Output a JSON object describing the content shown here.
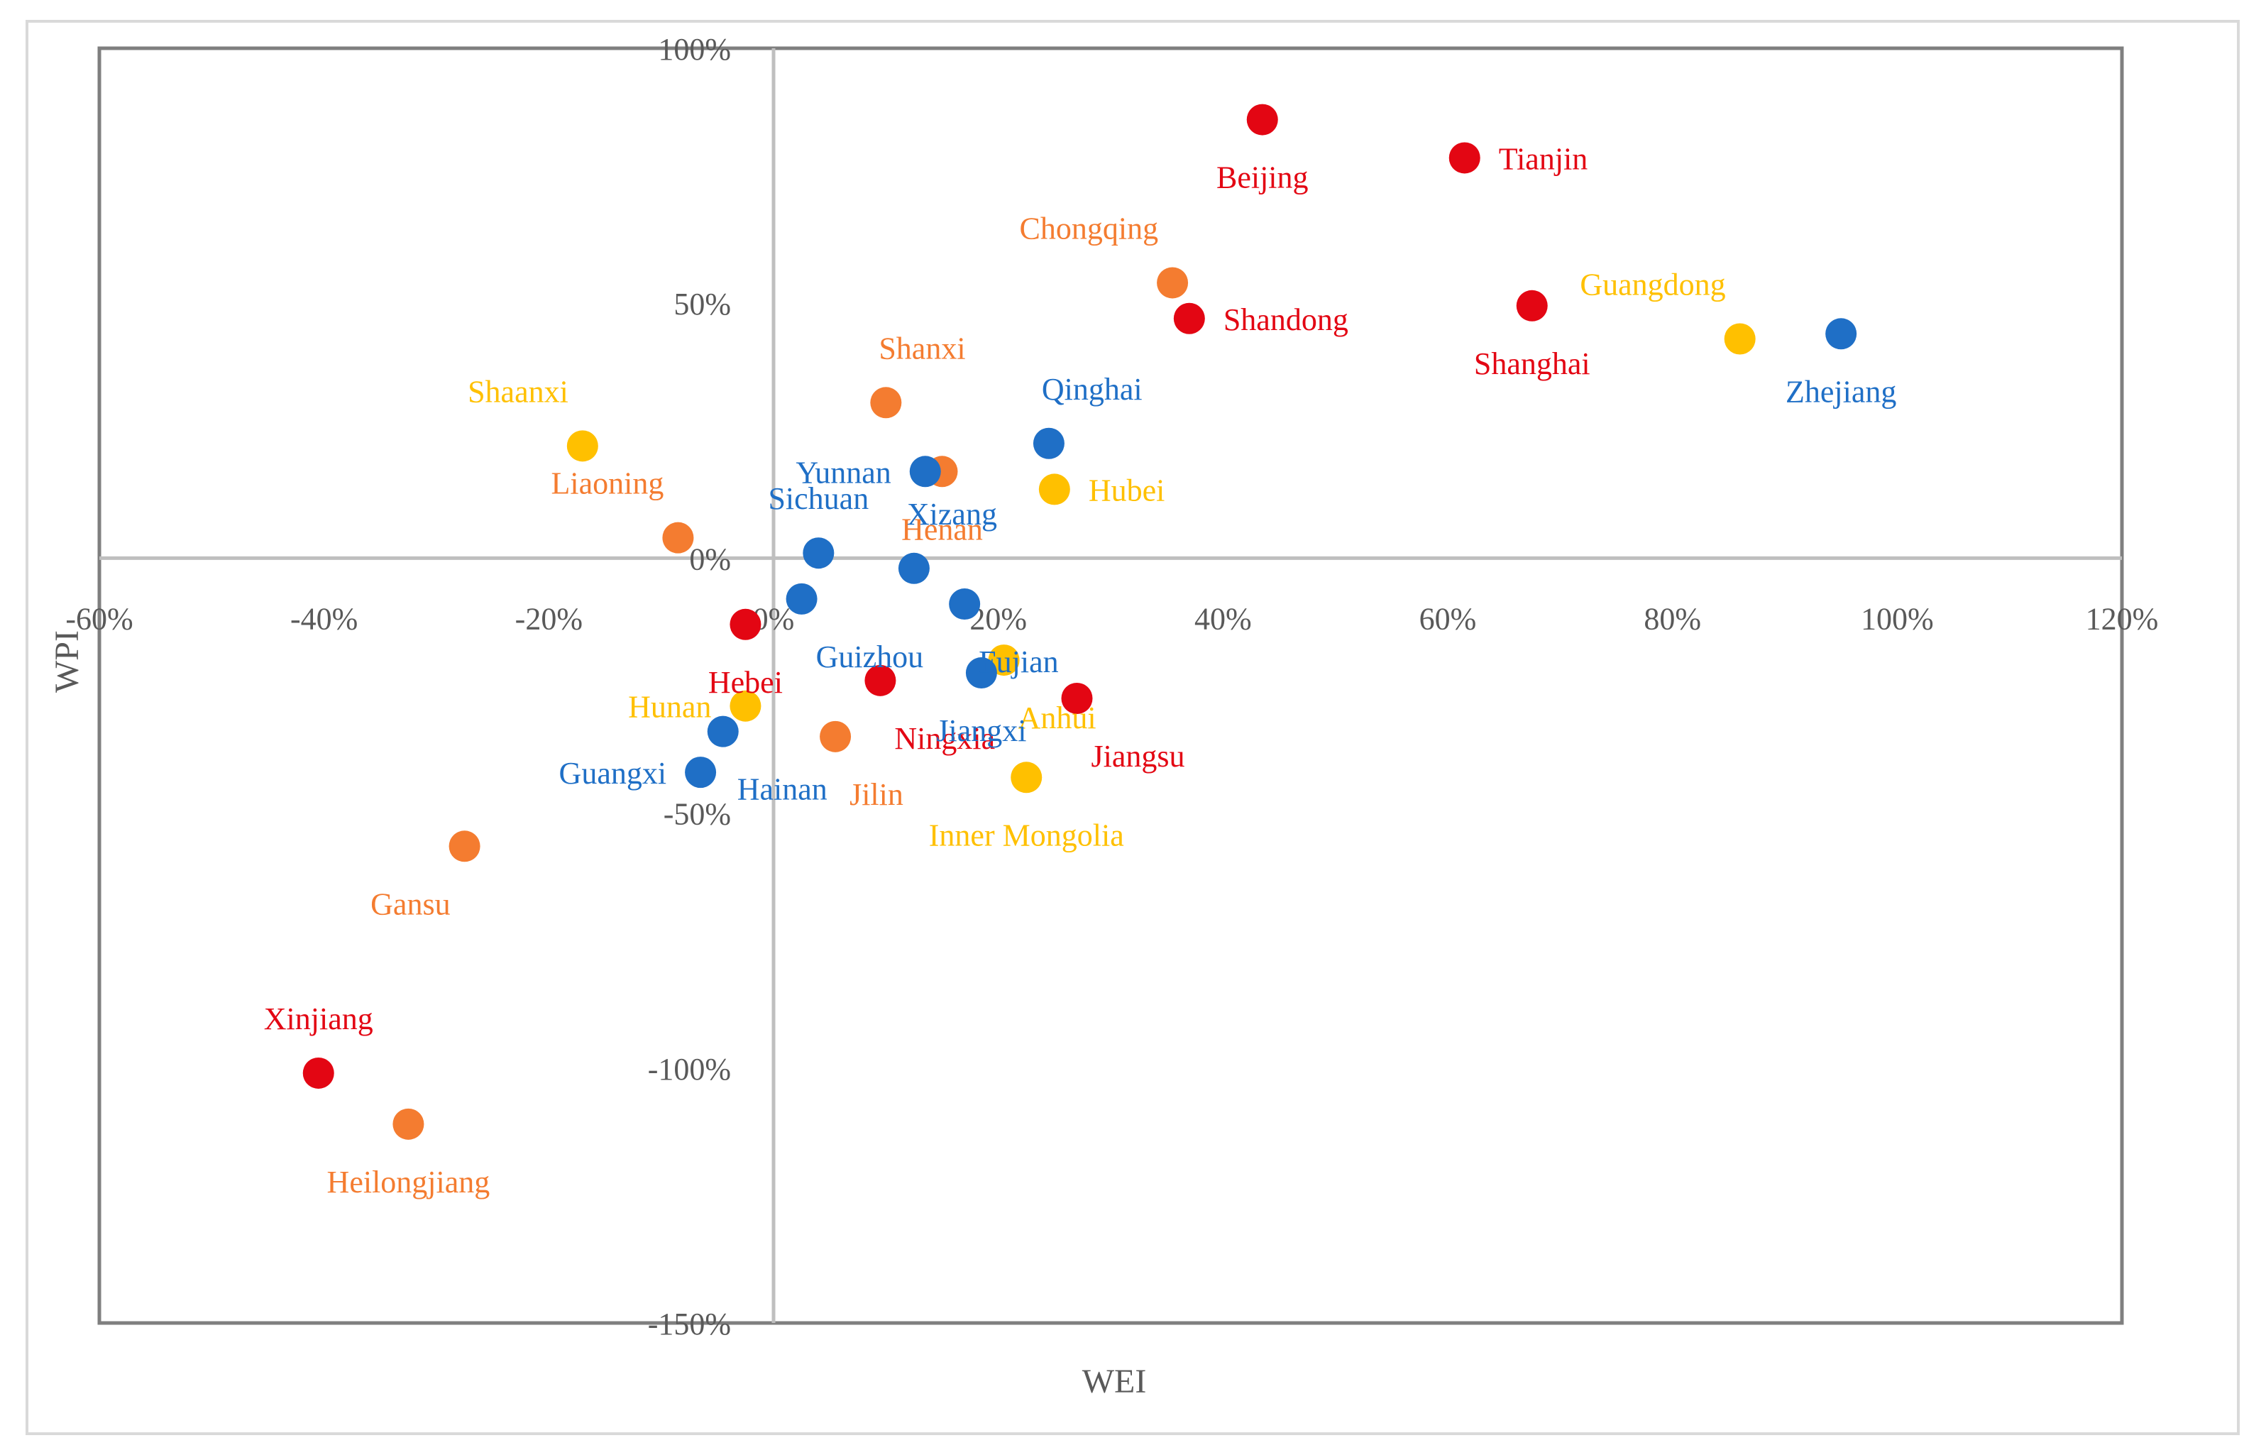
{
  "chart_data": {
    "type": "scatter",
    "title": "",
    "xlabel": "WEI",
    "ylabel": "WPI",
    "xlim": [
      -60,
      120
    ],
    "ylim": [
      -150,
      100
    ],
    "x_ticks": [
      -60,
      -40,
      -20,
      0,
      20,
      40,
      60,
      80,
      100,
      120
    ],
    "y_ticks": [
      100,
      50,
      0,
      -50,
      -100,
      -150
    ],
    "x_tick_labels": [
      "-60%",
      "-40%",
      "-20%",
      "0%",
      "20%",
      "40%",
      "60%",
      "80%",
      "100%",
      "120%"
    ],
    "y_tick_labels": [
      "100%",
      "50%",
      "0%",
      "-50%",
      "-100%",
      "-150%"
    ],
    "grid": false,
    "legend": "none",
    "colors": {
      "red": "#e30613",
      "orange": "#f47c30",
      "yellow": "#ffc000",
      "blue": "#1f6fc6",
      "axis": "#bfbfbf",
      "frame": "#7f7f7f",
      "text": "#595959"
    },
    "points": [
      {
        "name": "Beijing",
        "x": 43.5,
        "y": 86,
        "color": "red",
        "label_pos": "below"
      },
      {
        "name": "Tianjin",
        "x": 61.5,
        "y": 78.5,
        "color": "red",
        "label_pos": "right"
      },
      {
        "name": "Shandong",
        "x": 37,
        "y": 47,
        "color": "red",
        "label_pos": "right"
      },
      {
        "name": "Shanghai",
        "x": 67.5,
        "y": 49.5,
        "color": "red",
        "label_pos": "below"
      },
      {
        "name": "Hebei",
        "x": -2.5,
        "y": -13,
        "color": "red",
        "label_pos": "below"
      },
      {
        "name": "Ningxia",
        "x": 9.5,
        "y": -24,
        "color": "red",
        "label_pos": "below-right"
      },
      {
        "name": "Jiangsu",
        "x": 27,
        "y": -27.5,
        "color": "red",
        "label_pos": "below-right"
      },
      {
        "name": "Xinjiang",
        "x": -40.5,
        "y": -101,
        "color": "red",
        "label_pos": "above"
      },
      {
        "name": "Chongqing",
        "x": 35.5,
        "y": 54,
        "color": "orange",
        "label_pos": "above-left"
      },
      {
        "name": "Shanxi",
        "x": 10,
        "y": 30.5,
        "color": "orange",
        "label_pos": "above-right"
      },
      {
        "name": "Henan",
        "x": 15,
        "y": 17,
        "color": "orange",
        "label_pos": "below"
      },
      {
        "name": "Liaoning",
        "x": -8.5,
        "y": 4,
        "color": "orange",
        "label_pos": "above-left"
      },
      {
        "name": "Jilin",
        "x": 5.5,
        "y": -35,
        "color": "orange",
        "label_pos": "below-right"
      },
      {
        "name": "Gansu",
        "x": -27.5,
        "y": -56.5,
        "color": "orange",
        "label_pos": "below-left"
      },
      {
        "name": "Heilongjiang",
        "x": -32.5,
        "y": -111,
        "color": "orange",
        "label_pos": "below"
      },
      {
        "name": "Guangdong",
        "x": 86,
        "y": 43,
        "color": "yellow",
        "label_pos": "above-left"
      },
      {
        "name": "Shaanxi",
        "x": -17,
        "y": 22,
        "color": "yellow",
        "label_pos": "above-left"
      },
      {
        "name": "Hubei",
        "x": 25,
        "y": 13.5,
        "color": "yellow",
        "label_pos": "right"
      },
      {
        "name": "Anhui",
        "x": 20.5,
        "y": -20,
        "color": "yellow",
        "label_pos": "below-right"
      },
      {
        "name": "Hunan",
        "x": -2.5,
        "y": -29,
        "color": "yellow",
        "label_pos": "left"
      },
      {
        "name": "Inner Mongolia",
        "x": 22.5,
        "y": -43,
        "color": "yellow",
        "label_pos": "below"
      },
      {
        "name": "Zhejiang",
        "x": 95,
        "y": 44,
        "color": "blue",
        "label_pos": "below"
      },
      {
        "name": "Qinghai",
        "x": 24.5,
        "y": 22.5,
        "color": "blue",
        "label_pos": "above-right"
      },
      {
        "name": "Yunnan",
        "x": 13.5,
        "y": 17,
        "color": "blue",
        "label_pos": "left"
      },
      {
        "name": "Sichuan",
        "x": 4,
        "y": 1,
        "color": "blue",
        "label_pos": "above"
      },
      {
        "name": "Xizang",
        "x": 12.5,
        "y": -2,
        "color": "blue",
        "label_pos": "above-right"
      },
      {
        "name": "Fujian",
        "x": 17,
        "y": -9,
        "color": "blue",
        "label_pos": "below-right"
      },
      {
        "name": "Guizhou",
        "x": 2.5,
        "y": -8,
        "color": "blue",
        "label_pos": "below-right"
      },
      {
        "name": "Jiangxi",
        "x": 18.5,
        "y": -22.5,
        "color": "blue",
        "label_pos": "below"
      },
      {
        "name": "Hainan",
        "x": -4.5,
        "y": -34,
        "color": "blue",
        "label_pos": "below-right"
      },
      {
        "name": "Guangxi",
        "x": -6.5,
        "y": -42,
        "color": "blue",
        "label_pos": "left"
      }
    ]
  }
}
